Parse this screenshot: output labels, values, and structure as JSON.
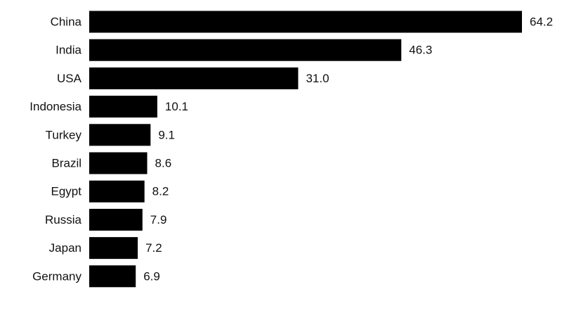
{
  "chart_data": {
    "type": "bar",
    "orientation": "horizontal",
    "categories": [
      "China",
      "India",
      "USA",
      "Indonesia",
      "Turkey",
      "Brazil",
      "Egypt",
      "Russia",
      "Japan",
      "Germany"
    ],
    "values": [
      64.2,
      46.3,
      31.0,
      10.1,
      9.1,
      8.6,
      8.2,
      7.9,
      7.2,
      6.9
    ],
    "value_labels": [
      "64.2",
      "46.3",
      "31.0",
      "10.1",
      "9.1",
      "8.6",
      "8.2",
      "7.9",
      "7.2",
      "6.9"
    ],
    "color": "#000000"
  }
}
